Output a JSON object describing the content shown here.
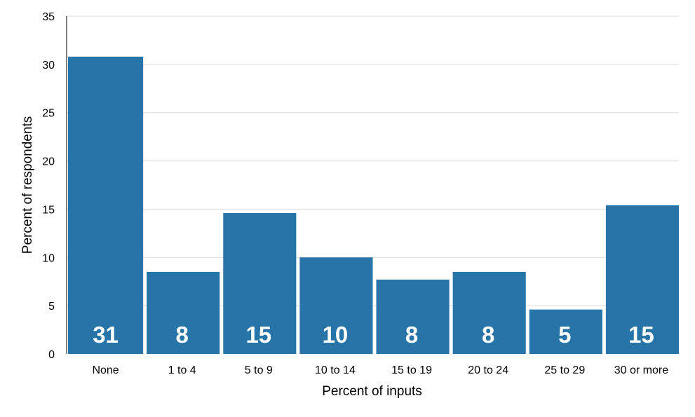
{
  "chart_data": {
    "type": "bar",
    "categories": [
      "None",
      "1 to 4",
      "5 to 9",
      "10 to 14",
      "15 to 19",
      "20 to 24",
      "25 to 29",
      "30 or more"
    ],
    "values": [
      30.8,
      8.5,
      14.6,
      10.0,
      7.7,
      8.5,
      4.6,
      15.4
    ],
    "data_labels": [
      "31",
      "8",
      "15",
      "10",
      "8",
      "8",
      "5",
      "15"
    ],
    "xlabel": "Percent of inputs",
    "ylabel": "Percent of respondents",
    "ylim": [
      0,
      35
    ],
    "yticks": [
      0,
      5,
      10,
      15,
      20,
      25,
      30,
      35
    ],
    "grid": true,
    "legend": "none",
    "colors": {
      "bar": "#2774a9",
      "grid": "#d9d9d9",
      "axis": "#000000",
      "data_label": "#ffffff"
    }
  }
}
